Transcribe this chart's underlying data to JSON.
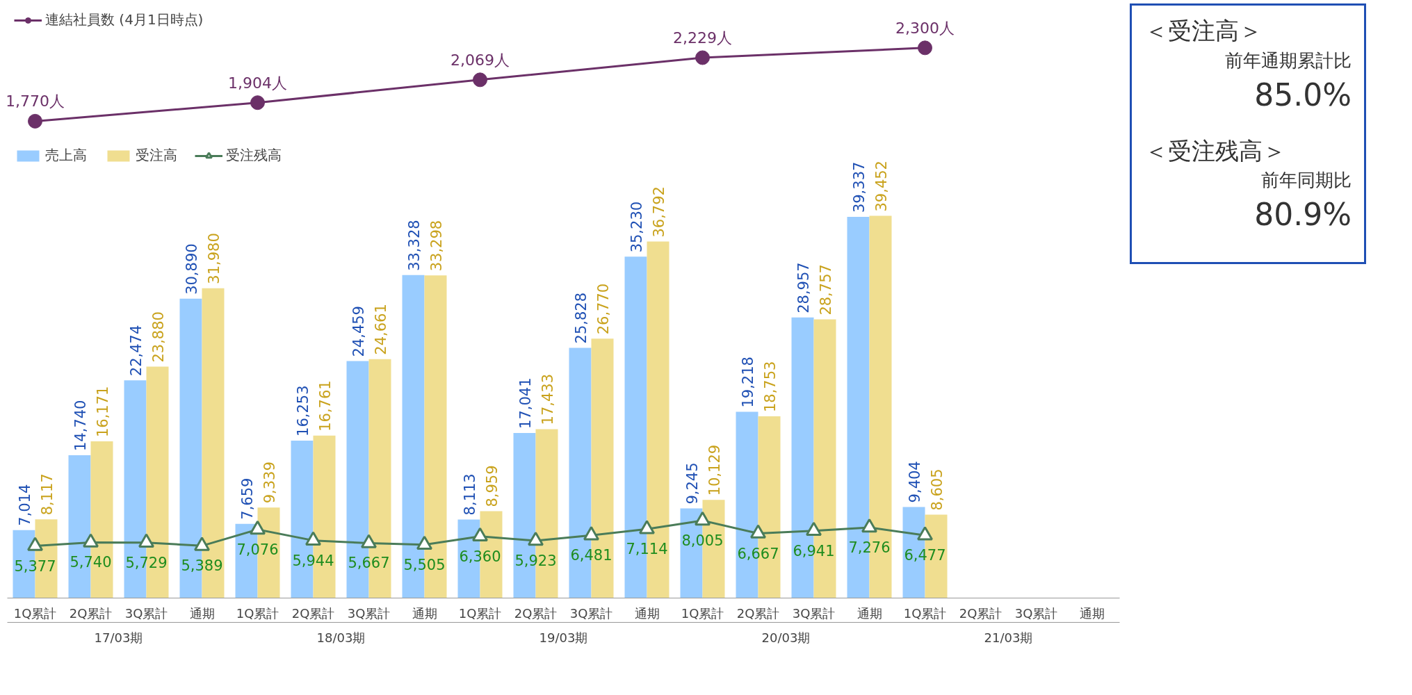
{
  "chart_data": [
    {
      "type": "line",
      "categories": [
        null,
        null,
        null,
        null,
        null
      ],
      "tick_labels": false,
      "legend": "top left",
      "series": [
        {
          "name": "連結社員数 (4月1日時点)",
          "color": "#6b3068",
          "marker": "circle",
          "values": [
            1770,
            1904,
            2069,
            2229,
            2300
          ],
          "value_labels": [
            "1,770人",
            "1,904人",
            "2,069人",
            "2,229人",
            "2,300人"
          ]
        }
      ]
    },
    {
      "type": "bar",
      "categories": [
        "1Q累計",
        "2Q累計",
        "3Q累計",
        "通期",
        "1Q累計",
        "2Q累計",
        "3Q累計",
        "通期",
        "1Q累計",
        "2Q累計",
        "3Q累計",
        "通期",
        "1Q累計",
        "2Q累計",
        "3Q累計",
        "通期",
        "1Q累計",
        "2Q累計",
        "3Q累計",
        "通期"
      ],
      "series": [
        {
          "type": "bar",
          "name": "売上高",
          "color": "#99ccff",
          "values": [
            7014,
            14740,
            22474,
            30890,
            7659,
            16253,
            24459,
            33328,
            8113,
            17041,
            25828,
            35230,
            9245,
            19218,
            28957,
            39337,
            9404,
            null,
            null,
            null
          ],
          "value_labels": [
            "7,014",
            "14,740",
            "22,474",
            "30,890",
            "7,659",
            "16,253",
            "24,459",
            "33,328",
            "8,113",
            "17,041",
            "25,828",
            "35,230",
            "9,245",
            "19,218",
            "28,957",
            "39,337",
            "9,404",
            null,
            null,
            null
          ]
        },
        {
          "type": "bar",
          "name": "受注高",
          "color": "#f0de90",
          "values": [
            8117,
            16171,
            23880,
            31980,
            9339,
            16761,
            24661,
            33298,
            8959,
            17433,
            26770,
            36792,
            10129,
            18753,
            28757,
            39452,
            8605,
            null,
            null,
            null
          ],
          "value_labels": [
            "8,117",
            "16,171",
            "23,880",
            "31,980",
            "9,339",
            "16,761",
            "24,661",
            "33,298",
            "8,959",
            "17,433",
            "26,770",
            "36,792",
            "10,129",
            "18,753",
            "28,757",
            "39,452",
            "8,605",
            null,
            null,
            null
          ]
        },
        {
          "type": "line",
          "name": "受注残高",
          "color": "#4a7c59",
          "marker": "triangle",
          "values": [
            5377,
            5740,
            5729,
            5389,
            7076,
            5944,
            5667,
            5505,
            6360,
            5923,
            6481,
            7114,
            8005,
            6667,
            6941,
            7276,
            6477,
            null,
            null,
            null
          ],
          "value_labels": [
            "5,377",
            "5,740",
            "5,729",
            "5,389",
            "7,076",
            "5,944",
            "5,667",
            "5,505",
            "6,360",
            "5,923",
            "6,481",
            "7,114",
            "8,005",
            "6,667",
            "6,941",
            "7,276",
            "6,477",
            null,
            null,
            null
          ]
        }
      ],
      "legend": "top left",
      "annotations": [
        "17/03期",
        "18/03期",
        "19/03期",
        "20/03期",
        "21/03期",
        "＜受注高＞",
        "前年通期累計比",
        "85.0%",
        "＜受注残高＞",
        "前年同期比",
        "80.9%"
      ]
    }
  ]
}
